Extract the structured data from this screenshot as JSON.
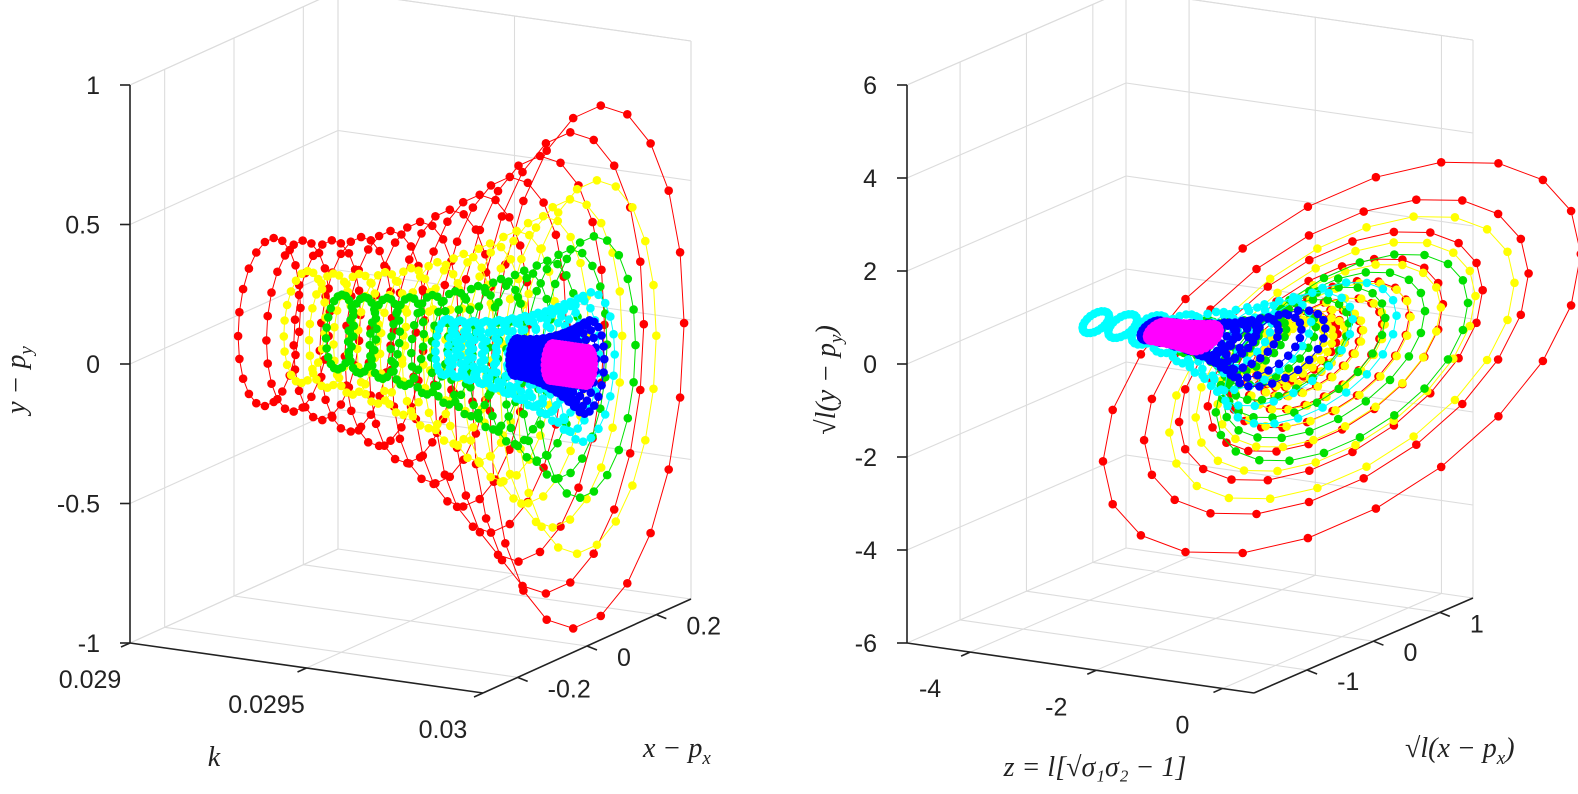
{
  "figure": "two 3D scatter-line plots of concentric point rings",
  "colors": {
    "ring_palette": [
      "#ff0000",
      "#ffff00",
      "#00e000",
      "#00ffff",
      "#0000ff",
      "#ff00ff"
    ],
    "line_color": "#ff0000",
    "grid": "#dcdcdc",
    "axis": "#222222"
  },
  "chart_data": [
    {
      "type": "scatter",
      "panel": "left",
      "title": "",
      "xlabel": "k",
      "ylabel": "x - p_x",
      "zlabel": "y - p_y",
      "xlabel_tex": "k",
      "ylabel_tex": "x − p",
      "ylabel_sub": "x",
      "zlabel_tex": "y − p",
      "zlabel_sub": "y",
      "xlim": [
        0.029,
        0.03
      ],
      "ylim": [
        -0.3,
        0.3
      ],
      "zlim": [
        -1,
        1
      ],
      "x_ticks": [
        "0.029",
        "0.0295",
        "0.03"
      ],
      "y_ticks": [
        "-0.2",
        "0",
        "0.2"
      ],
      "z_ticks": [
        "-1",
        "-0.5",
        "0",
        "0.5",
        "1"
      ],
      "series": [
        {
          "name": "red rings",
          "color": "#ff0000",
          "k": [
            0.0291,
            0.03
          ],
          "radius": [
            0.09,
            0.28
          ]
        },
        {
          "name": "yellow rings",
          "color": "#ffff00",
          "k": [
            0.0292,
            0.03
          ],
          "radius": [
            0.06,
            0.2
          ]
        },
        {
          "name": "green rings",
          "color": "#00e000",
          "k": [
            0.0293,
            0.03
          ],
          "radius": [
            0.04,
            0.14
          ]
        },
        {
          "name": "cyan rings",
          "color": "#00ffff",
          "k": [
            0.0296,
            0.03
          ],
          "radius": [
            0.03,
            0.08
          ]
        },
        {
          "name": "blue rings",
          "color": "#0000ff",
          "k": [
            0.0298,
            0.03
          ],
          "radius": [
            0.02,
            0.05
          ]
        },
        {
          "name": "magenta ring",
          "color": "#ff00ff",
          "k": [
            0.0299,
            0.03
          ],
          "radius": [
            0.02,
            0.02
          ]
        }
      ]
    },
    {
      "type": "scatter",
      "panel": "right",
      "title": "",
      "xlabel": "z = l[sqrt(sigma1 sigma2) - 1]",
      "ylabel": "sqrt(l)(x - p_x)",
      "zlabel": "sqrt(l)(y - p_y)",
      "xlabel_tex": "z = l[√σ₁σ₂ − 1]",
      "ylabel_tex": "√l(x − p",
      "ylabel_sub": "x",
      "ylabel_close": ")",
      "zlabel_tex": "√l(y − p",
      "zlabel_sub": "y",
      "zlabel_close": ")",
      "xlim": [
        -5,
        0.5
      ],
      "ylim": [
        -1.8,
        1.5
      ],
      "zlim": [
        -6,
        6
      ],
      "x_ticks": [
        "-4",
        "-2",
        "0"
      ],
      "y_ticks": [
        "-1",
        "0",
        "1"
      ],
      "z_ticks": [
        "-6",
        "-4",
        "-2",
        "0",
        "2",
        "4",
        "6"
      ],
      "series": [
        {
          "name": "red rings",
          "color": "#ff0000",
          "z": [
            -0.7,
            0.0
          ],
          "radius": [
            0.6,
            3.6
          ]
        },
        {
          "name": "yellow rings",
          "color": "#ffff00",
          "z": [
            -0.8,
            0.0
          ],
          "radius": [
            0.5,
            2.6
          ]
        },
        {
          "name": "green rings",
          "color": "#00e000",
          "z": [
            -2.3,
            0.0
          ],
          "radius": [
            0.3,
            1.9
          ]
        },
        {
          "name": "cyan rings",
          "color": "#00ffff",
          "z": [
            -3.9,
            -0.5
          ],
          "radius": [
            0.2,
            1.3
          ]
        },
        {
          "name": "blue rings",
          "color": "#0000ff",
          "z": [
            -3.0,
            -1.0
          ],
          "radius": [
            0.18,
            0.7
          ]
        },
        {
          "name": "magenta rings",
          "color": "#ff00ff",
          "z": [
            -2.9,
            -2.2
          ],
          "radius": [
            0.18,
            0.25
          ]
        }
      ]
    }
  ]
}
